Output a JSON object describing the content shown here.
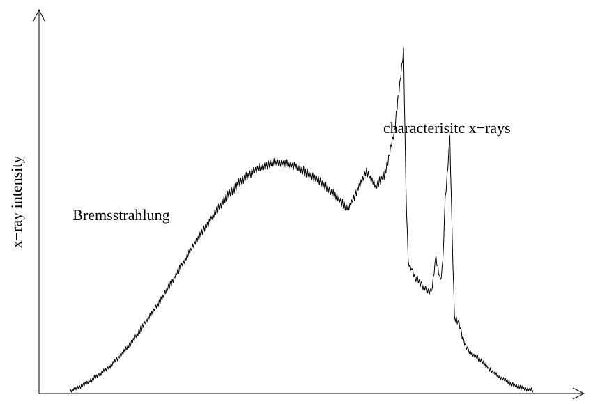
{
  "chart_data": {
    "type": "line",
    "title": "",
    "xlabel": "",
    "ylabel": "x−ray intensity",
    "xlim": [
      0,
      100
    ],
    "ylim": [
      0,
      100
    ],
    "grid": false,
    "legend": "none",
    "series": [
      {
        "x": [
          0,
          2,
          4,
          6,
          8,
          10,
          12,
          14,
          16,
          18,
          20,
          22,
          24,
          26,
          28,
          30,
          32,
          34,
          36,
          38,
          40,
          42,
          44,
          46,
          48,
          50,
          52,
          54,
          56,
          58,
          60,
          62,
          64,
          66,
          68,
          70,
          72,
          72.5,
          73,
          74,
          74.5,
          75,
          76,
          77,
          78,
          79,
          80,
          80.5,
          81,
          82,
          82.5,
          83,
          84,
          84.5,
          85,
          86,
          88,
          90,
          92,
          94,
          96,
          98,
          100
        ],
        "values": [
          0.4,
          1.5,
          3,
          5,
          7,
          9.5,
          12.5,
          16,
          20,
          24,
          28,
          32.5,
          37,
          41.5,
          46,
          50,
          54,
          57.5,
          60.5,
          63,
          65,
          66.3,
          67,
          67,
          66.3,
          65,
          63.5,
          61.5,
          59,
          56.5,
          53.5,
          59,
          64.5,
          60,
          64,
          76,
          100,
          60,
          38,
          35,
          33,
          33,
          31,
          30,
          29,
          39,
          32,
          38,
          56,
          74,
          46,
          22,
          20,
          17,
          15,
          12,
          10,
          7.5,
          5,
          3.5,
          2,
          1,
          0.5
        ]
      }
    ],
    "annotations": [
      {
        "text": "Bremsstrahlung",
        "x": 0.5,
        "y": 74
      },
      {
        "text": "characterisitc x−rays",
        "x": 67.6,
        "y": 100
      }
    ]
  },
  "colors": {
    "axis": "#000000",
    "line": "#000000",
    "text": "#000000"
  }
}
